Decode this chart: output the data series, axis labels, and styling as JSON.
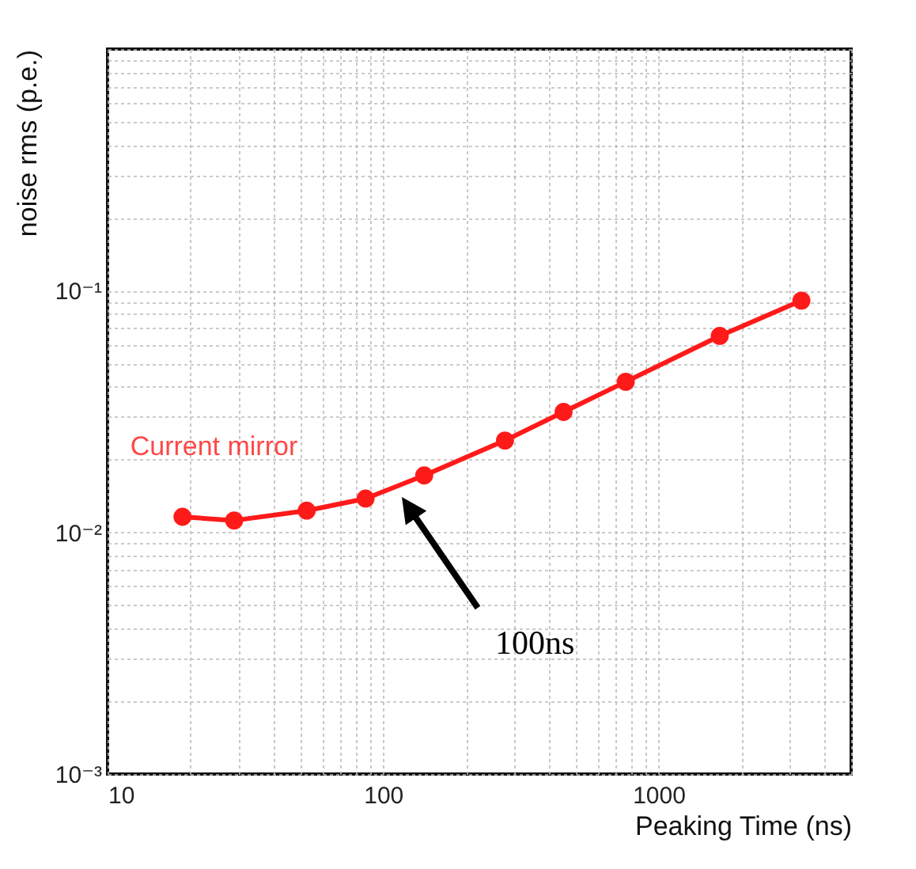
{
  "chart_data": {
    "type": "line",
    "xlabel": "Peaking Time (ns)",
    "ylabel": "noise rms (p.e.)",
    "x": [
      18.7,
      28.8,
      52.8,
      86.4,
      141,
      277,
      452,
      760,
      1667,
      3300
    ],
    "series": [
      {
        "name": "Current mirror",
        "color": "#ff1a1a",
        "values": [
          0.0116,
          0.0112,
          0.0123,
          0.0138,
          0.0172,
          0.024,
          0.0315,
          0.042,
          0.065,
          0.091
        ]
      }
    ],
    "log": "xy",
    "xlim": [
      10,
      5000
    ],
    "ylim": [
      0.001,
      1
    ],
    "xticks": [
      10,
      {
        "value": 20,
        "label": null
      },
      {
        "value": 30,
        "label": null
      },
      {
        "value": 40,
        "label": null
      },
      {
        "value": 50,
        "label": null
      },
      {
        "value": 60,
        "label": null
      },
      {
        "value": 70,
        "label": null
      },
      {
        "value": 80,
        "label": null
      },
      {
        "value": 90,
        "label": null
      },
      100,
      {
        "value": 200,
        "label": null
      },
      {
        "value": 300,
        "label": null
      },
      {
        "value": 400,
        "label": null
      },
      {
        "value": 500,
        "label": null
      },
      {
        "value": 600,
        "label": null
      },
      {
        "value": 700,
        "label": null
      },
      {
        "value": 800,
        "label": null
      },
      {
        "value": 900,
        "label": null
      },
      1000,
      {
        "value": 2000,
        "label": null
      },
      {
        "value": 3000,
        "label": null
      },
      {
        "value": 4000,
        "label": null
      },
      {
        "value": 5000,
        "label": null
      }
    ],
    "yticks": [
      {
        "value": 0.001,
        "label": "10⁻³"
      },
      {
        "value": 0.002,
        "label": null
      },
      {
        "value": 0.003,
        "label": null
      },
      {
        "value": 0.004,
        "label": null
      },
      {
        "value": 0.005,
        "label": null
      },
      {
        "value": 0.006,
        "label": null
      },
      {
        "value": 0.007,
        "label": null
      },
      {
        "value": 0.008,
        "label": null
      },
      {
        "value": 0.009,
        "label": null
      },
      {
        "value": 0.01,
        "label": "10⁻²"
      },
      {
        "value": 0.02,
        "label": null
      },
      {
        "value": 0.03,
        "label": null
      },
      {
        "value": 0.04,
        "label": null
      },
      {
        "value": 0.05,
        "label": null
      },
      {
        "value": 0.06,
        "label": null
      },
      {
        "value": 0.07,
        "label": null
      },
      {
        "value": 0.08,
        "label": null
      },
      {
        "value": 0.09,
        "label": null
      },
      {
        "value": 0.1,
        "label": "10⁻¹"
      },
      {
        "value": 0.2,
        "label": null
      },
      {
        "value": 0.3,
        "label": null
      },
      {
        "value": 0.4,
        "label": null
      },
      {
        "value": 0.5,
        "label": null
      },
      {
        "value": 0.6,
        "label": null
      },
      {
        "value": 0.7,
        "label": null
      },
      {
        "value": 0.8,
        "label": null
      },
      {
        "value": 0.9,
        "label": null
      },
      {
        "value": 1,
        "label": null
      }
    ],
    "grid": true,
    "marker": "circle",
    "line_style": "solid",
    "annotations": [
      "100ns"
    ]
  }
}
